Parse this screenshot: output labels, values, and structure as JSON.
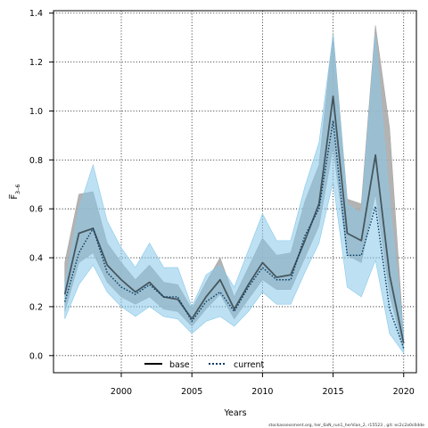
{
  "chart_data": {
    "type": "line",
    "xlabel": "Years",
    "ylabel": "F̅",
    "ylabel_subscript": "3–6",
    "xlim": [
      1995.2,
      2020.9
    ],
    "ylim": [
      -0.07,
      1.41
    ],
    "xticks": [
      2000,
      2005,
      2010,
      2015,
      2020
    ],
    "yticks": [
      0.0,
      0.2,
      0.4,
      0.6,
      0.8,
      1.0,
      1.2,
      1.4
    ],
    "xtick_labels": [
      "2000",
      "2005",
      "2010",
      "2015",
      "2020"
    ],
    "ytick_labels": [
      "0.0",
      "0.2",
      "0.4",
      "0.6",
      "0.8",
      "1.0",
      "1.2",
      "1.4"
    ],
    "grid": true,
    "legend_position": "bottom-left",
    "x": [
      1996,
      1997,
      1998,
      1999,
      2000,
      2001,
      2002,
      2003,
      2004,
      2005,
      2006,
      2007,
      2008,
      2009,
      2010,
      2011,
      2012,
      2013,
      2014,
      2015,
      2016,
      2017,
      2018,
      2019,
      2020
    ],
    "series": [
      {
        "name": "base",
        "color": "#000000",
        "band_color": "#a6a6a6",
        "style": "solid",
        "values": [
          0.25,
          0.5,
          0.52,
          0.37,
          0.31,
          0.26,
          0.3,
          0.24,
          0.23,
          0.15,
          0.24,
          0.31,
          0.19,
          0.29,
          0.38,
          0.32,
          0.33,
          0.47,
          0.62,
          1.06,
          0.5,
          0.47,
          0.82,
          0.33,
          0.05
        ],
        "lower": [
          0.18,
          0.38,
          0.42,
          0.3,
          0.24,
          0.21,
          0.24,
          0.19,
          0.18,
          0.12,
          0.19,
          0.25,
          0.15,
          0.23,
          0.31,
          0.27,
          0.27,
          0.4,
          0.53,
          0.85,
          0.41,
          0.38,
          0.66,
          0.25,
          0.02
        ],
        "upper": [
          0.38,
          0.66,
          0.67,
          0.46,
          0.38,
          0.31,
          0.37,
          0.3,
          0.29,
          0.19,
          0.3,
          0.4,
          0.24,
          0.36,
          0.48,
          0.41,
          0.42,
          0.63,
          0.78,
          1.32,
          0.64,
          0.62,
          1.35,
          0.93,
          0.07
        ]
      },
      {
        "name": "current",
        "color": "#0b3d66",
        "band_color": "#87c8ea",
        "style": "dotted",
        "values": [
          0.22,
          0.42,
          0.52,
          0.34,
          0.28,
          0.25,
          0.29,
          0.24,
          0.24,
          0.14,
          0.22,
          0.26,
          0.18,
          0.28,
          0.36,
          0.31,
          0.31,
          0.49,
          0.6,
          0.96,
          0.41,
          0.41,
          0.61,
          0.19,
          0.03
        ],
        "lower": [
          0.15,
          0.29,
          0.37,
          0.26,
          0.2,
          0.16,
          0.2,
          0.16,
          0.15,
          0.09,
          0.14,
          0.16,
          0.12,
          0.18,
          0.26,
          0.21,
          0.21,
          0.34,
          0.46,
          0.71,
          0.28,
          0.24,
          0.39,
          0.09,
          0.01
        ],
        "upper": [
          0.29,
          0.6,
          0.78,
          0.55,
          0.44,
          0.36,
          0.46,
          0.36,
          0.36,
          0.2,
          0.33,
          0.37,
          0.28,
          0.43,
          0.58,
          0.47,
          0.47,
          0.69,
          0.87,
          1.31,
          0.62,
          0.58,
          1.31,
          0.63,
          0.09
        ]
      }
    ]
  },
  "footnote": "stockassessment.org, her_6aN_run1_herVian_2, r15523 , git: ec2c2a0c6dde"
}
